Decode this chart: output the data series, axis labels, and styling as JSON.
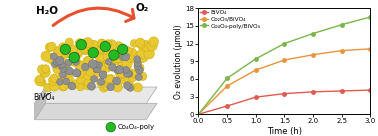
{
  "time": [
    0,
    0.5,
    1.0,
    1.5,
    2.0,
    2.5,
    3.0
  ],
  "bivo4": [
    0,
    1.4,
    2.9,
    3.5,
    3.8,
    3.95,
    4.1
  ],
  "co2o3_bivo4": [
    0,
    4.8,
    7.5,
    9.2,
    10.1,
    10.8,
    11.1
  ],
  "co4o4_bivo4": [
    0,
    6.1,
    9.4,
    12.0,
    13.7,
    15.2,
    16.5
  ],
  "bivo4_color": "#e05a4e",
  "co2o3_color": "#e8943a",
  "co4o4_color": "#7ab648",
  "ylim": [
    0,
    18
  ],
  "xlim": [
    0,
    3.0
  ],
  "yticks": [
    0,
    3,
    6,
    9,
    12,
    15,
    18
  ],
  "xticks": [
    0.0,
    0.5,
    1.0,
    1.5,
    2.0,
    2.5,
    3.0
  ],
  "xlabel": "Time (h)",
  "ylabel": "O₂ evolution (μmol)",
  "legend1": "BiVO₄",
  "legend2": "Co₂O₃/BiVO₄",
  "legend3": "Co₄O₄-poly/BiVO₄",
  "yellow_color": "#e8c832",
  "yellow_edge": "#c8a800",
  "gray_color": "#909090",
  "gray_edge": "#686868",
  "green_color": "#22bb22",
  "green_edge": "#156615",
  "slab_color": "#d8d8d8",
  "slab_edge": "#b0b0b0",
  "arrow_color": "#e85030"
}
